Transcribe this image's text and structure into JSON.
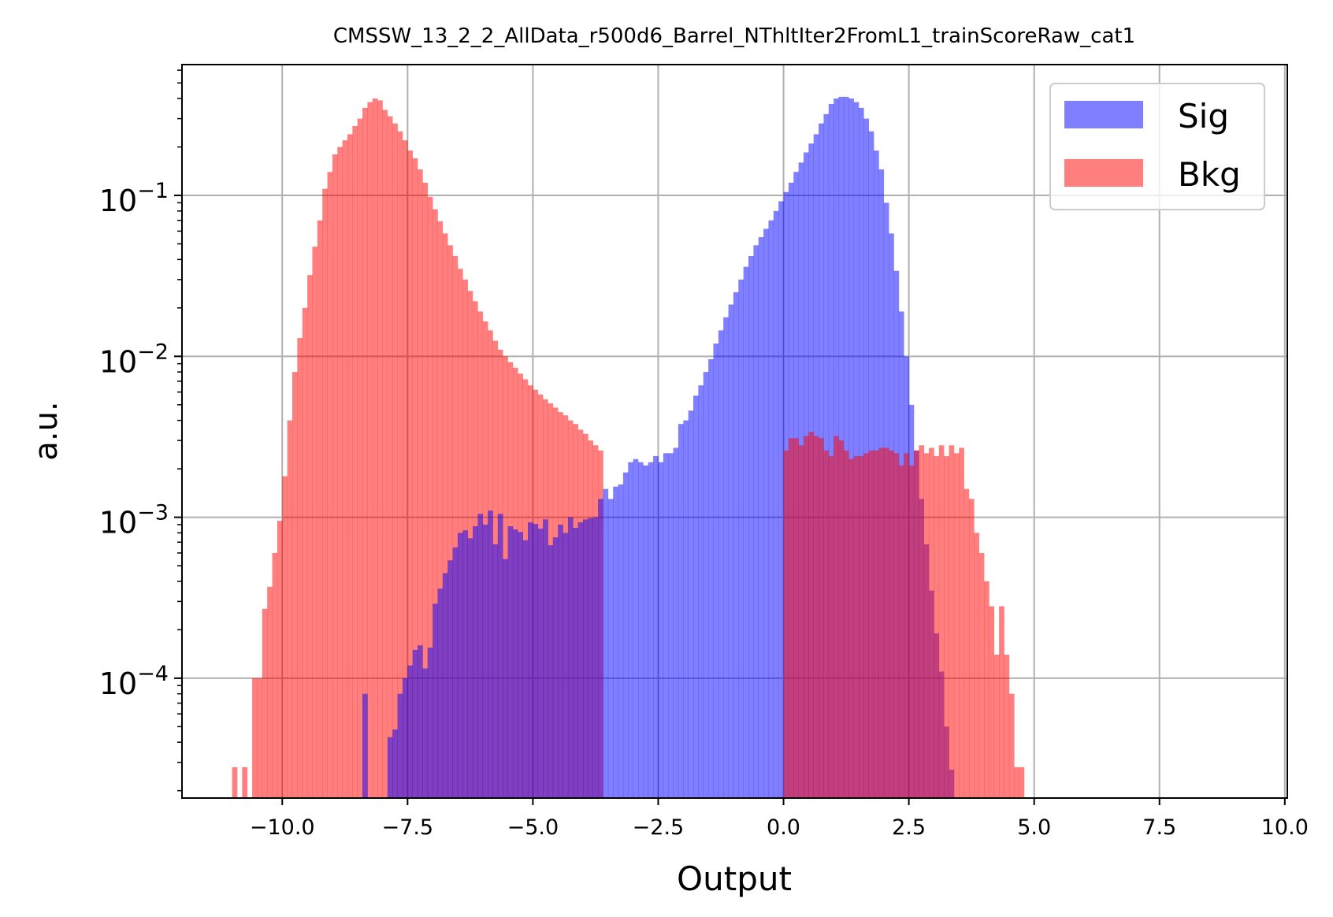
{
  "chart_data": {
    "type": "histogram",
    "title": "CMSSW_13_2_2_AllData_r500d6_Barrel_NThltIter2FromL1_trainScoreRaw_cat1",
    "xlabel": "Output",
    "ylabel": "a.u.",
    "xlim": [
      -12.0,
      10.05
    ],
    "ylim": [
      1.8e-05,
      0.65
    ],
    "yscale": "log",
    "grid": true,
    "legend_position": "upper right",
    "x_ticks": [
      "−10.0",
      "−7.5",
      "−5.0",
      "−2.5",
      "0.0",
      "2.5",
      "5.0",
      "7.5",
      "10.0"
    ],
    "x_tick_values": [
      -10.0,
      -7.5,
      -5.0,
      -2.5,
      0.0,
      2.5,
      5.0,
      7.5,
      10.0
    ],
    "y_ticks": [
      {
        "value": 0.1,
        "base": "10",
        "exp": "−1"
      },
      {
        "value": 0.01,
        "base": "10",
        "exp": "−2"
      },
      {
        "value": 0.001,
        "base": "10",
        "exp": "−3"
      },
      {
        "value": 0.0001,
        "base": "10",
        "exp": "−4"
      }
    ],
    "series": [
      {
        "name": "Bkg",
        "color": "#ff0000",
        "opacity": 0.5,
        "x_start": -11.0,
        "bin_width": 0.1,
        "values": [
          2.8e-05,
          0,
          2.8e-05,
          0,
          0.0001,
          0.0001,
          0.00027,
          0.00037,
          0.0006,
          0.00095,
          0.0018,
          0.004,
          0.008,
          0.013,
          0.02,
          0.032,
          0.048,
          0.07,
          0.11,
          0.14,
          0.18,
          0.2,
          0.22,
          0.24,
          0.27,
          0.3,
          0.35,
          0.38,
          0.4,
          0.39,
          0.34,
          0.31,
          0.28,
          0.25,
          0.22,
          0.19,
          0.17,
          0.145,
          0.12,
          0.098,
          0.082,
          0.069,
          0.058,
          0.049,
          0.042,
          0.035,
          0.03,
          0.0255,
          0.022,
          0.019,
          0.0165,
          0.0145,
          0.0125,
          0.011,
          0.01,
          0.0092,
          0.0085,
          0.0078,
          0.0072,
          0.0066,
          0.0062,
          0.0058,
          0.0054,
          0.0051,
          0.0048,
          0.0045,
          0.0043,
          0.004,
          0.0038,
          0.0035,
          0.0033,
          0.003,
          0.0028,
          0.0026
        ]
      },
      {
        "name": "Sig",
        "color": "#0000ff",
        "opacity": 0.5,
        "x_start": -8.4,
        "bin_width": 0.1,
        "values": [
          8e-05,
          0,
          0,
          0,
          0,
          4.3e-05,
          4.8e-05,
          8e-05,
          0.0001,
          0.00012,
          0.00015,
          0.00016,
          0.000115,
          0.000155,
          0.00029,
          0.00036,
          0.00045,
          0.00054,
          0.00065,
          0.0008,
          0.00083,
          0.00074,
          0.00088,
          0.00105,
          0.0009,
          0.0011,
          0.00068,
          0.00105,
          0.00055,
          0.00088,
          0.00084,
          0.00081,
          0.00072,
          0.00093,
          0.00091,
          0.00085,
          0.00097,
          0.00067,
          0.00075,
          0.0009,
          0.0008,
          0.001,
          0.00086,
          0.00093,
          0.00097,
          0.00099,
          0.001,
          0.0013,
          0.0015,
          0.0013,
          0.00155,
          0.0016,
          0.0019,
          0.0022,
          0.0023,
          0.0022,
          0.0021,
          0.0022,
          0.0024,
          0.0022,
          0.0025,
          0.0025,
          0.0027,
          0.0038,
          0.004,
          0.0046,
          0.0057,
          0.0066,
          0.008,
          0.0096,
          0.012,
          0.0145,
          0.0175,
          0.021,
          0.025,
          0.03,
          0.036,
          0.042,
          0.049,
          0.055,
          0.062,
          0.07,
          0.08,
          0.092,
          0.105,
          0.12,
          0.14,
          0.16,
          0.185,
          0.21,
          0.24,
          0.28,
          0.32,
          0.37,
          0.4,
          0.41,
          0.41,
          0.4,
          0.38,
          0.35,
          0.3,
          0.25,
          0.19,
          0.145,
          0.09,
          0.058,
          0.034,
          0.019,
          0.01,
          0.005,
          0.0026,
          0.0013,
          0.00068,
          0.00035,
          0.00019,
          0.00011,
          5e-05,
          2.7e-05
        ]
      },
      {
        "name": "Bkg",
        "color": "#ff0000",
        "opacity": 0.5,
        "x_start": 0.0,
        "bin_width": 0.1,
        "values": [
          0.0026,
          0.0031,
          0.0031,
          0.0028,
          0.0032,
          0.0034,
          0.0032,
          0.0031,
          0.0026,
          0.0024,
          0.0032,
          0.003,
          0.0026,
          0.0023,
          0.0024,
          0.0024,
          0.0025,
          0.0026,
          0.0026,
          0.0027,
          0.0027,
          0.0026,
          0.0025,
          0.0021,
          0.0025,
          0.0021,
          0.0026,
          0.0028,
          0.0025,
          0.0027,
          0.0024,
          0.0028,
          0.0024,
          0.0028,
          0.0025,
          0.0027,
          0.0015,
          0.0013,
          0.0008,
          0.0006,
          0.0004,
          0.00028,
          0.00014,
          0.00028,
          0.00014,
          8e-05,
          2.8e-05,
          2.8e-05
        ]
      }
    ]
  }
}
